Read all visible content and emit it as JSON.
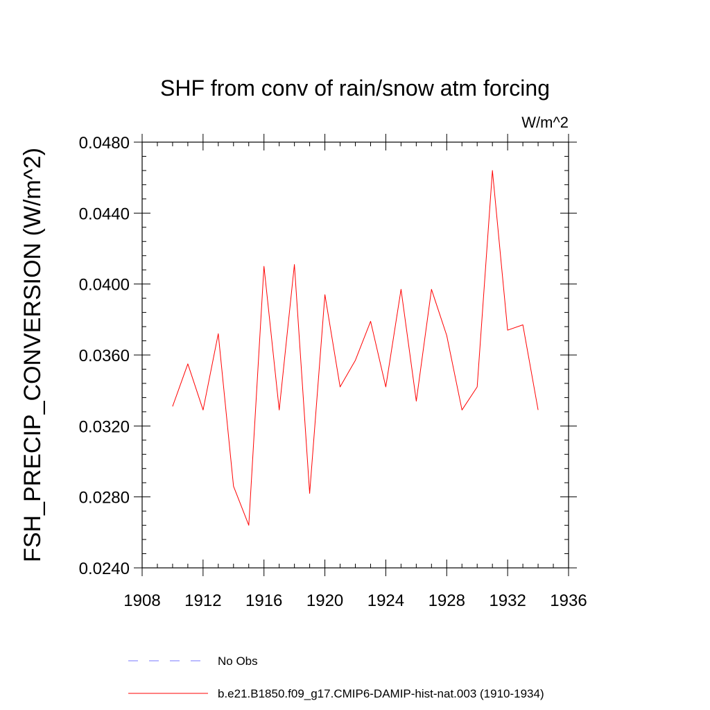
{
  "chart_data": {
    "type": "line",
    "title": "SHF from conv of rain/snow atm forcing",
    "units": "W/m^2",
    "ylabel": "FSH_PRECIP_CONVERSION  (W/m^2)",
    "xlabel": "",
    "xlim": [
      1908,
      1936
    ],
    "ylim": [
      0.024,
      0.048
    ],
    "x_ticks": [
      1908,
      1912,
      1916,
      1920,
      1924,
      1928,
      1932,
      1936
    ],
    "x_tick_labels": [
      "1908",
      "1912",
      "1916",
      "1920",
      "1924",
      "1928",
      "1932",
      "1936"
    ],
    "y_ticks": [
      0.024,
      0.028,
      0.032,
      0.036,
      0.04,
      0.044,
      0.048
    ],
    "y_tick_labels": [
      "0.0240",
      "0.0280",
      "0.0320",
      "0.0360",
      "0.0400",
      "0.0440",
      "0.0480"
    ],
    "grid": false,
    "legend_position": "bottom",
    "series": [
      {
        "name": "No Obs",
        "color": "#7777ff",
        "dashed": true,
        "x": [],
        "values": []
      },
      {
        "name": "b.e21.B1850.f09_g17.CMIP6-DAMIP-hist-nat.003 (1910-1934)",
        "color": "#ff0000",
        "dashed": false,
        "x": [
          1910,
          1911,
          1912,
          1913,
          1914,
          1915,
          1916,
          1917,
          1918,
          1919,
          1920,
          1921,
          1922,
          1923,
          1924,
          1925,
          1926,
          1927,
          1928,
          1929,
          1930,
          1931,
          1932,
          1933,
          1934
        ],
        "values": [
          0.0331,
          0.0355,
          0.0329,
          0.0372,
          0.0286,
          0.0264,
          0.041,
          0.0329,
          0.0411,
          0.0282,
          0.0394,
          0.0342,
          0.0357,
          0.0379,
          0.0342,
          0.0397,
          0.0334,
          0.0397,
          0.0371,
          0.0329,
          0.0342,
          0.0464,
          0.0374,
          0.0377,
          0.0329
        ]
      }
    ]
  }
}
